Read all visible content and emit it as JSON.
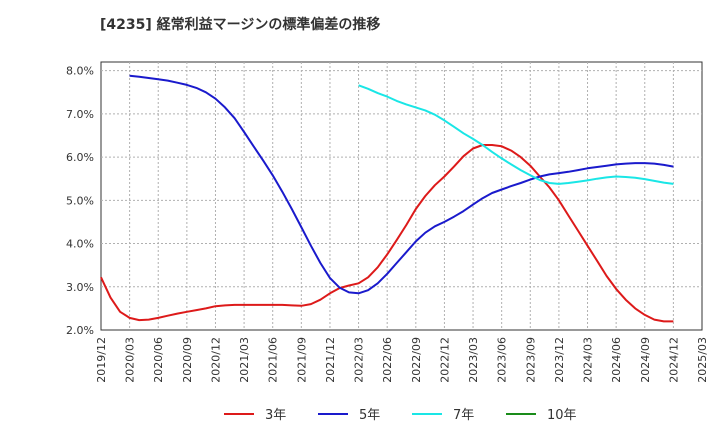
{
  "chart_data": {
    "type": "line",
    "title": "[4235]  経常利益マージンの標準偏差の推移",
    "xlabel": "",
    "ylabel": "",
    "ylim": [
      2.0,
      8.2
    ],
    "y_ticks": [
      "2.0%",
      "3.0%",
      "4.0%",
      "5.0%",
      "6.0%",
      "7.0%",
      "8.0%"
    ],
    "y_tick_values": [
      2.0,
      3.0,
      4.0,
      5.0,
      6.0,
      7.0,
      8.0
    ],
    "x_ticks": [
      "2019/12",
      "2020/03",
      "2020/06",
      "2020/09",
      "2020/12",
      "2021/03",
      "2021/06",
      "2021/09",
      "2021/12",
      "2022/03",
      "2022/06",
      "2022/09",
      "2022/12",
      "2023/03",
      "2023/06",
      "2023/09",
      "2023/12",
      "2024/03",
      "2024/06",
      "2024/09",
      "2024/12",
      "2025/03"
    ],
    "grid": true,
    "legend_position": "bottom",
    "series": [
      {
        "name": "3年",
        "color": "#dd1a1a",
        "x": [
          "2019/12",
          "2020/01",
          "2020/02",
          "2020/03",
          "2020/04",
          "2020/05",
          "2020/06",
          "2020/07",
          "2020/08",
          "2020/09",
          "2020/10",
          "2020/11",
          "2020/12",
          "2021/01",
          "2021/02",
          "2021/03",
          "2021/04",
          "2021/05",
          "2021/06",
          "2021/07",
          "2021/08",
          "2021/09",
          "2021/10",
          "2021/11",
          "2021/12",
          "2022/01",
          "2022/02",
          "2022/03",
          "2022/04",
          "2022/05",
          "2022/06",
          "2022/07",
          "2022/08",
          "2022/09",
          "2022/10",
          "2022/11",
          "2022/12",
          "2023/01",
          "2023/02",
          "2023/03",
          "2023/04",
          "2023/05",
          "2023/06",
          "2023/07",
          "2023/08",
          "2023/09",
          "2023/10",
          "2023/11",
          "2023/12",
          "2024/01",
          "2024/02",
          "2024/03",
          "2024/04",
          "2024/05",
          "2024/06",
          "2024/07",
          "2024/08",
          "2024/09",
          "2024/10",
          "2024/11",
          "2024/12"
        ],
        "values": [
          3.22,
          2.75,
          2.42,
          2.28,
          2.23,
          2.24,
          2.28,
          2.33,
          2.38,
          2.42,
          2.46,
          2.5,
          2.55,
          2.57,
          2.58,
          2.58,
          2.58,
          2.58,
          2.58,
          2.58,
          2.57,
          2.56,
          2.6,
          2.7,
          2.85,
          2.97,
          3.03,
          3.08,
          3.22,
          3.45,
          3.75,
          4.08,
          4.43,
          4.8,
          5.1,
          5.35,
          5.55,
          5.78,
          6.02,
          6.2,
          6.28,
          6.28,
          6.25,
          6.15,
          6.0,
          5.8,
          5.55,
          5.3,
          5.0,
          4.65,
          4.3,
          3.95,
          3.6,
          3.25,
          2.95,
          2.7,
          2.5,
          2.35,
          2.24,
          2.2,
          2.2
        ]
      },
      {
        "name": "5年",
        "color": "#1a1acc",
        "x": [
          "2020/03",
          "2020/04",
          "2020/05",
          "2020/06",
          "2020/07",
          "2020/08",
          "2020/09",
          "2020/10",
          "2020/11",
          "2020/12",
          "2021/01",
          "2021/02",
          "2021/03",
          "2021/04",
          "2021/05",
          "2021/06",
          "2021/07",
          "2021/08",
          "2021/09",
          "2021/10",
          "2021/11",
          "2021/12",
          "2022/01",
          "2022/02",
          "2022/03",
          "2022/04",
          "2022/05",
          "2022/06",
          "2022/07",
          "2022/08",
          "2022/09",
          "2022/10",
          "2022/11",
          "2022/12",
          "2023/01",
          "2023/02",
          "2023/03",
          "2023/04",
          "2023/05",
          "2023/06",
          "2023/07",
          "2023/08",
          "2023/09",
          "2023/10",
          "2023/11",
          "2023/12",
          "2024/01",
          "2024/02",
          "2024/03",
          "2024/04",
          "2024/05",
          "2024/06",
          "2024/07",
          "2024/08",
          "2024/09",
          "2024/10",
          "2024/11",
          "2024/12"
        ],
        "values": [
          7.88,
          7.86,
          7.83,
          7.8,
          7.77,
          7.72,
          7.67,
          7.6,
          7.5,
          7.35,
          7.15,
          6.9,
          6.58,
          6.25,
          5.92,
          5.58,
          5.2,
          4.8,
          4.38,
          3.95,
          3.55,
          3.2,
          2.98,
          2.87,
          2.85,
          2.92,
          3.08,
          3.3,
          3.55,
          3.8,
          4.05,
          4.25,
          4.4,
          4.5,
          4.62,
          4.75,
          4.9,
          5.05,
          5.17,
          5.25,
          5.33,
          5.4,
          5.48,
          5.55,
          5.6,
          5.63,
          5.66,
          5.7,
          5.74,
          5.77,
          5.8,
          5.83,
          5.85,
          5.86,
          5.86,
          5.85,
          5.82,
          5.78
        ]
      },
      {
        "name": "7年",
        "color": "#1ae6e6",
        "x": [
          "2022/03",
          "2022/04",
          "2022/05",
          "2022/06",
          "2022/07",
          "2022/08",
          "2022/09",
          "2022/10",
          "2022/11",
          "2022/12",
          "2023/01",
          "2023/02",
          "2023/03",
          "2023/04",
          "2023/05",
          "2023/06",
          "2023/07",
          "2023/08",
          "2023/09",
          "2023/10",
          "2023/11",
          "2023/12",
          "2024/01",
          "2024/02",
          "2024/03",
          "2024/04",
          "2024/05",
          "2024/06",
          "2024/07",
          "2024/08",
          "2024/09",
          "2024/10",
          "2024/11",
          "2024/12"
        ],
        "values": [
          7.66,
          7.58,
          7.48,
          7.4,
          7.3,
          7.22,
          7.15,
          7.08,
          6.98,
          6.85,
          6.7,
          6.55,
          6.42,
          6.28,
          6.12,
          5.97,
          5.83,
          5.7,
          5.58,
          5.47,
          5.4,
          5.38,
          5.4,
          5.43,
          5.46,
          5.5,
          5.53,
          5.55,
          5.54,
          5.52,
          5.49,
          5.45,
          5.41,
          5.38
        ]
      },
      {
        "name": "10年",
        "color": "#1a8c1a",
        "x": [],
        "values": []
      }
    ]
  }
}
